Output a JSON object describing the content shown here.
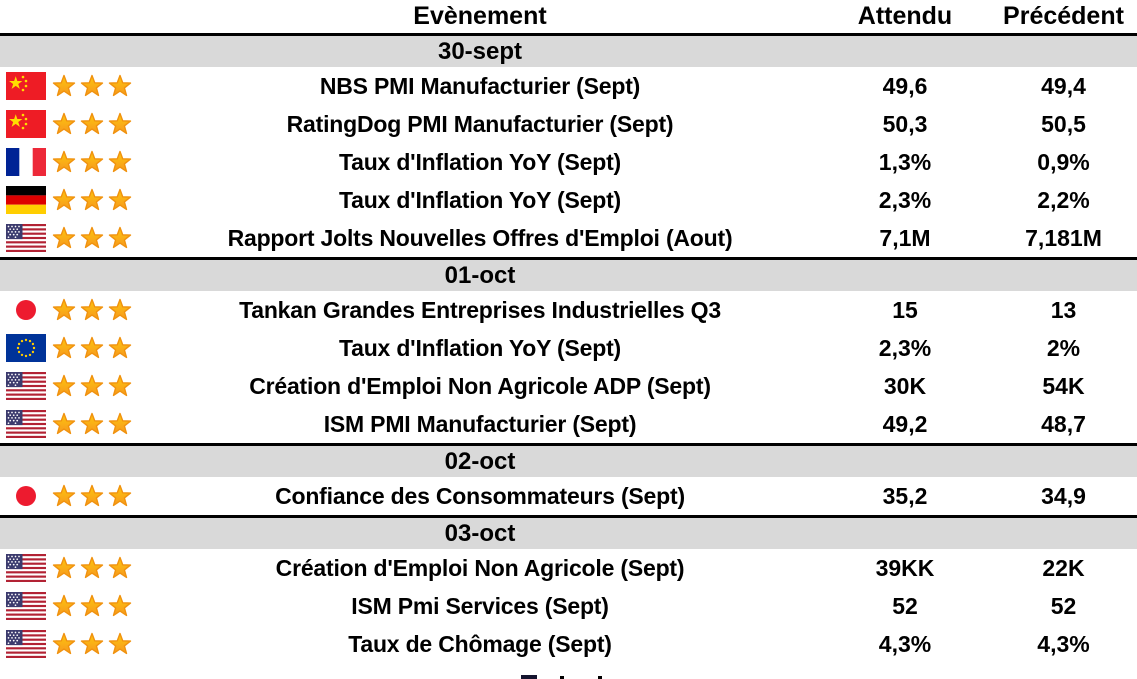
{
  "header": {
    "event_label": "Evènement",
    "expected_label": "Attendu",
    "previous_label": "Précédent"
  },
  "sections": [
    {
      "date": "30-sept",
      "rows": [
        {
          "country": "china",
          "stars": 3,
          "event": "NBS PMI Manufacturier (Sept)",
          "expected": "49,6",
          "previous": "49,4"
        },
        {
          "country": "china",
          "stars": 3,
          "event": "RatingDog PMI Manufacturier (Sept)",
          "expected": "50,3",
          "previous": "50,5"
        },
        {
          "country": "france",
          "stars": 3,
          "event": "Taux d'Inflation YoY (Sept)",
          "expected": "1,3%",
          "previous": "0,9%"
        },
        {
          "country": "germany",
          "stars": 3,
          "event": "Taux d'Inflation YoY (Sept)",
          "expected": "2,3%",
          "previous": "2,2%"
        },
        {
          "country": "usa",
          "stars": 3,
          "event": "Rapport Jolts Nouvelles Offres d'Emploi (Aout)",
          "expected": "7,1M",
          "previous": "7,181M"
        }
      ]
    },
    {
      "date": "01-oct",
      "rows": [
        {
          "country": "japan",
          "stars": 3,
          "event": "Tankan Grandes Entreprises Industrielles Q3",
          "expected": "15",
          "previous": "13"
        },
        {
          "country": "eu",
          "stars": 3,
          "event": "Taux d'Inflation YoY (Sept)",
          "expected": "2,3%",
          "previous": "2%"
        },
        {
          "country": "usa",
          "stars": 3,
          "event": "Création d'Emploi Non Agricole ADP (Sept)",
          "expected": "30K",
          "previous": "54K"
        },
        {
          "country": "usa",
          "stars": 3,
          "event": "ISM PMI Manufacturier (Sept)",
          "expected": "49,2",
          "previous": "48,7"
        }
      ]
    },
    {
      "date": "02-oct",
      "rows": [
        {
          "country": "japan",
          "stars": 3,
          "event": "Confiance des Consommateurs (Sept)",
          "expected": "35,2",
          "previous": "34,9"
        }
      ]
    },
    {
      "date": "03-oct",
      "rows": [
        {
          "country": "usa",
          "stars": 3,
          "event": "Création d'Emploi Non Agricole (Sept)",
          "expected": "39KK",
          "previous": "22K"
        },
        {
          "country": "usa",
          "stars": 3,
          "event": "ISM Pmi Services (Sept)",
          "expected": "52",
          "previous": "52"
        },
        {
          "country": "usa",
          "stars": 3,
          "event": "Taux de Chômage (Sept)",
          "expected": "4,3%",
          "previous": "4,3%"
        }
      ]
    }
  ],
  "colors": {
    "section_band_bg": "#D9D9D9",
    "separator_line": "#000000",
    "text": "#000000",
    "star_fill_top": "#FDC70C",
    "star_fill_bottom": "#F7981F",
    "star_stroke": "#F0920F"
  }
}
